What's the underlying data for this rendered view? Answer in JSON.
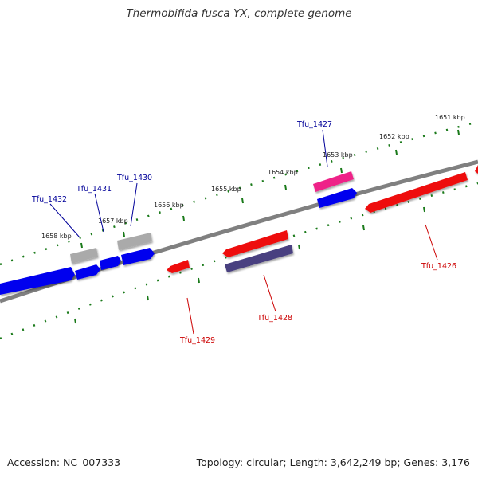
{
  "title": "Thermobifida fusca YX, complete genome",
  "footer": {
    "accession": "Accession: NC_007333",
    "summary": "Topology: circular; Length: 3,642,249 bp; Genes: 3,176"
  },
  "scale_labels": [
    "1651 kbp",
    "1652 kbp",
    "1653 kbp",
    "1654 kbp",
    "1655 kbp",
    "1656 kbp",
    "1657 kbp",
    "1658 kbp"
  ],
  "genes": [
    {
      "name": "Tfu_1426",
      "strand": "reverse",
      "color": "#ee1111"
    },
    {
      "name": "Tfu_1427",
      "strand": "forward",
      "color": "#ee2288"
    },
    {
      "name": "Tfu_1428",
      "strand": "reverse",
      "color": "#ee1111"
    },
    {
      "name": "Tfu_1429",
      "strand": "reverse",
      "color": "#ee1111"
    },
    {
      "name": "Tfu_1430",
      "strand": "forward",
      "color": "#aaaaaa"
    },
    {
      "name": "Tfu_1431",
      "strand": "forward",
      "color": "#aaaaaa"
    },
    {
      "name": "Tfu_1432",
      "strand": "forward",
      "color": "#0000ee"
    }
  ],
  "colors": {
    "forward_label": "#000099",
    "reverse_label": "#cc0000",
    "backbone": "#808080",
    "ticks": "#1a7a1a"
  }
}
